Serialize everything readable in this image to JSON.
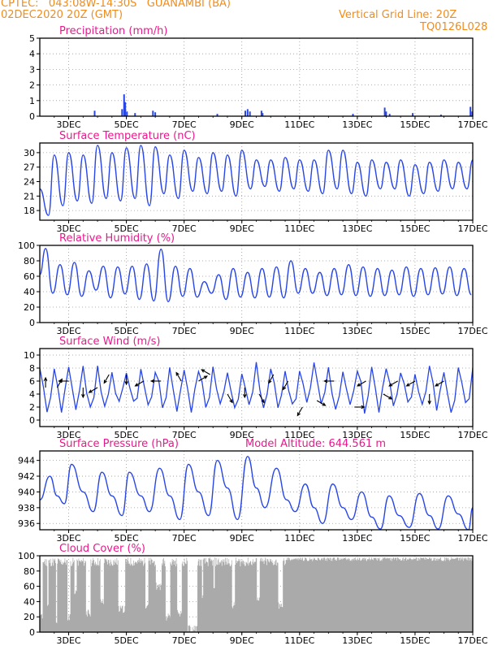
{
  "header": {
    "line1_left": "CPTEC:   043:08W-14:30S   GUANAMBI (BA)",
    "line2_left": "02DEC2020 20Z (GMT)",
    "line1_right": "Vertical Grid Line: 20Z",
    "line2_right": "TQ0126L028"
  },
  "colors": {
    "header": "#f08c1e",
    "title": "#e8198c",
    "series": "#2846e6",
    "cloud": "#aaaaaa",
    "grid": "#999999"
  },
  "x_axis_ticks": [
    "3DEC",
    "5DEC",
    "7DEC",
    "9DEC",
    "11DEC",
    "13DEC",
    "15DEC",
    "17DEC"
  ],
  "chart_data": [
    {
      "id": "precipitation",
      "type": "bar",
      "title": "Precipitation (mm/h)",
      "ylim": [
        0,
        5
      ],
      "yticks": [
        0,
        1,
        2,
        3,
        4,
        5
      ],
      "grid": true,
      "bars": [
        [
          3.9,
          0.35
        ],
        [
          4.85,
          0.45
        ],
        [
          4.92,
          1.4
        ],
        [
          4.96,
          0.9
        ],
        [
          5.02,
          0.3
        ],
        [
          5.3,
          0.2
        ],
        [
          5.92,
          0.35
        ],
        [
          6.0,
          0.25
        ],
        [
          8.15,
          0.15
        ],
        [
          9.12,
          0.35
        ],
        [
          9.2,
          0.45
        ],
        [
          9.28,
          0.3
        ],
        [
          9.68,
          0.35
        ],
        [
          9.72,
          0.2
        ],
        [
          12.85,
          0.15
        ],
        [
          13.95,
          0.55
        ],
        [
          14.0,
          0.3
        ],
        [
          14.12,
          0.15
        ],
        [
          14.92,
          0.2
        ],
        [
          15.9,
          0.1
        ],
        [
          16.92,
          0.6
        ],
        [
          16.98,
          0.3
        ]
      ]
    },
    {
      "id": "temperature",
      "type": "line",
      "title": "Surface Temperature (nC)",
      "ylim": [
        16,
        32
      ],
      "yticks": [
        18,
        21,
        24,
        27,
        30
      ],
      "grid": true,
      "max": [
        29.5,
        30,
        29.5,
        31.5,
        30,
        31,
        31.5,
        31.2,
        29.5,
        30.5,
        29,
        30,
        29.5,
        30.5,
        28.5,
        28.5,
        29,
        28.5,
        28.5,
        30.5,
        30.5,
        28,
        28.5,
        28,
        28.5,
        27.5,
        28,
        28.5,
        28,
        28.5,
        28.5
      ],
      "min": [
        17,
        19,
        20,
        19.5,
        20.5,
        20,
        20.5,
        19,
        21.5,
        20.5,
        22,
        21.5,
        22,
        21,
        22.5,
        23,
        22,
        22.5,
        22,
        21.5,
        22.5,
        21.5,
        21,
        22.5,
        22.5,
        21,
        21.5,
        22,
        22.5,
        22.5,
        22
      ]
    },
    {
      "id": "humidity",
      "type": "line",
      "title": "Relative Humidity (%)",
      "ylim": [
        0,
        100
      ],
      "yticks": [
        0,
        20,
        40,
        60,
        80,
        100
      ],
      "grid": true,
      "max": [
        96,
        75,
        78,
        67,
        73,
        72,
        73,
        76,
        95,
        73,
        70,
        53,
        62,
        70,
        65,
        70,
        72,
        80,
        70,
        65,
        70,
        75,
        72,
        70,
        68,
        72,
        70,
        71,
        72,
        70,
        70
      ],
      "min": [
        38,
        36,
        34,
        42,
        32,
        37,
        30,
        28,
        27,
        34,
        33,
        38,
        30,
        33,
        32,
        33,
        32,
        38,
        38,
        35,
        36,
        35,
        34,
        35,
        36,
        34,
        36,
        37,
        35,
        36,
        35
      ]
    },
    {
      "id": "wind",
      "type": "line",
      "title": "Surface Wind (m/s)",
      "ylim": [
        -1,
        11
      ],
      "yticks": [
        0,
        2,
        4,
        6,
        8,
        10
      ],
      "grid": true,
      "arrows": [
        [
          2.2,
          3,
          5
        ],
        [
          2.6,
          2,
          5
        ],
        [
          3.0,
          6,
          6
        ],
        [
          3.5,
          9,
          5
        ],
        [
          4.0,
          7,
          5
        ],
        [
          4.4,
          8,
          7
        ],
        [
          5.0,
          9,
          7
        ],
        [
          5.6,
          7,
          6
        ],
        [
          6.2,
          6,
          6
        ],
        [
          6.9,
          4,
          6
        ],
        [
          7.5,
          1,
          6
        ],
        [
          7.9,
          5,
          7
        ],
        [
          8.5,
          10,
          4
        ],
        [
          9.1,
          9,
          5
        ],
        [
          9.6,
          10,
          4
        ],
        [
          10.1,
          8,
          7
        ],
        [
          10.6,
          8,
          6
        ],
        [
          11.1,
          8,
          2
        ],
        [
          11.6,
          11,
          3
        ],
        [
          12.2,
          6,
          6
        ],
        [
          12.9,
          12,
          2
        ],
        [
          13.3,
          7,
          6
        ],
        [
          13.9,
          11,
          4
        ],
        [
          14.4,
          7,
          6
        ],
        [
          15.0,
          7,
          6
        ],
        [
          15.5,
          9,
          4
        ],
        [
          16.0,
          7,
          6
        ]
      ]
    },
    {
      "id": "pressure",
      "type": "line",
      "title": "Surface Pressure (hPa)",
      "annotation": "Model Altitude: 644.561  m",
      "ylim": [
        935.2,
        945.2
      ],
      "yticks": [
        936,
        938,
        940,
        942,
        944
      ],
      "grid": true,
      "keys": [
        [
          2.0,
          939
        ],
        [
          2.35,
          942
        ],
        [
          2.6,
          939.5
        ],
        [
          2.85,
          938.5
        ],
        [
          3.1,
          943.5
        ],
        [
          3.5,
          940
        ],
        [
          3.85,
          937.5
        ],
        [
          4.15,
          942.5
        ],
        [
          4.5,
          939.5
        ],
        [
          4.85,
          937
        ],
        [
          5.1,
          942.5
        ],
        [
          5.5,
          939.5
        ],
        [
          5.8,
          937.5
        ],
        [
          6.15,
          943
        ],
        [
          6.5,
          939.5
        ],
        [
          6.85,
          936.5
        ],
        [
          7.15,
          943.5
        ],
        [
          7.5,
          940
        ],
        [
          7.85,
          937
        ],
        [
          8.15,
          944
        ],
        [
          8.5,
          940.5
        ],
        [
          8.85,
          936.5
        ],
        [
          9.2,
          944.5
        ],
        [
          9.5,
          940.5
        ],
        [
          9.8,
          938
        ],
        [
          10.2,
          943
        ],
        [
          10.55,
          939
        ],
        [
          10.85,
          937.5
        ],
        [
          11.2,
          941
        ],
        [
          11.5,
          938
        ],
        [
          11.8,
          936
        ],
        [
          12.15,
          941
        ],
        [
          12.5,
          938
        ],
        [
          12.8,
          936.5
        ],
        [
          13.15,
          940
        ],
        [
          13.5,
          936.8
        ],
        [
          13.8,
          935.3
        ],
        [
          14.1,
          939.5
        ],
        [
          14.45,
          937
        ],
        [
          14.8,
          935.5
        ],
        [
          15.15,
          939.8
        ],
        [
          15.5,
          937
        ],
        [
          15.8,
          935.3
        ],
        [
          16.15,
          939.5
        ],
        [
          16.5,
          937.2
        ],
        [
          16.85,
          935.2
        ],
        [
          17.0,
          938
        ]
      ]
    },
    {
      "id": "cloud",
      "type": "area",
      "title": "Cloud Cover (%)",
      "ylim": [
        0,
        100
      ],
      "yticks": [
        0,
        20,
        40,
        60,
        80,
        100
      ],
      "grid": true,
      "gaps": [
        [
          2.0,
          2.08,
          15
        ],
        [
          2.25,
          2.3,
          30
        ],
        [
          2.55,
          2.6,
          5
        ],
        [
          2.95,
          3.05,
          15
        ],
        [
          3.2,
          3.28,
          45
        ],
        [
          3.6,
          3.75,
          20
        ],
        [
          4.1,
          4.2,
          35
        ],
        [
          4.7,
          4.95,
          25
        ],
        [
          5.65,
          5.75,
          30
        ],
        [
          6.0,
          6.2,
          55
        ],
        [
          6.35,
          6.5,
          15
        ],
        [
          6.75,
          6.9,
          20
        ],
        [
          7.1,
          7.45,
          0
        ],
        [
          7.6,
          7.65,
          40
        ],
        [
          8.0,
          8.05,
          50
        ],
        [
          8.65,
          8.75,
          30
        ],
        [
          9.5,
          9.6,
          40
        ],
        [
          10.25,
          10.4,
          30
        ],
        [
          10.65,
          10.75,
          20
        ],
        [
          11.2,
          11.3,
          35
        ],
        [
          11.6,
          11.7,
          25
        ],
        [
          11.85,
          11.95,
          55
        ],
        [
          12.3,
          12.4,
          35
        ],
        [
          12.7,
          12.85,
          30
        ],
        [
          13.0,
          13.1,
          20
        ],
        [
          14.7,
          14.75,
          80
        ],
        [
          15.6,
          15.65,
          85
        ]
      ]
    }
  ]
}
